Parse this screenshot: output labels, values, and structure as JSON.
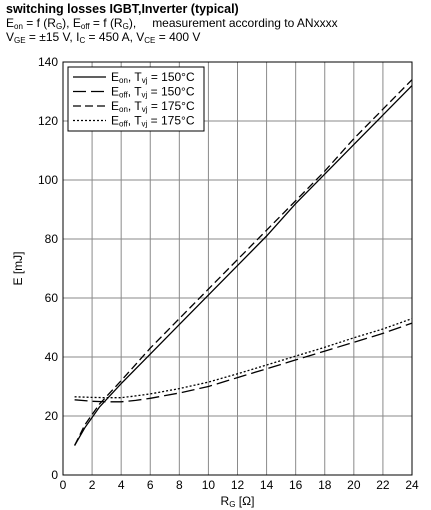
{
  "header": {
    "title": "switching losses IGBT,Inverter (typical)",
    "eon_eq_main": "E",
    "eon_eq_sub": "on",
    "eon_eq_rest": " = f (R",
    "eon_eq_sub2": "G",
    "eon_eq_end": "), E",
    "eoff_sub": "off",
    "eoff_rest": " = f (R",
    "eoff_sub2": "G",
    "eoff_end": "),",
    "measurement": "measurement according to ANxxxx",
    "cond_v": "V",
    "cond_v_sub": "GE",
    "cond_v_val": " = ±15 V, I",
    "cond_i_sub": "C",
    "cond_i_val": " = 450 A, V",
    "cond_vce_sub": "CE",
    "cond_vce_val": " = 400 V"
  },
  "chart_data": {
    "type": "line",
    "xlabel": "RG [Ω]",
    "ylabel": "E [mJ]",
    "xlim": [
      0,
      24
    ],
    "ylim": [
      0,
      140
    ],
    "xticks": [
      0,
      2,
      4,
      6,
      8,
      10,
      12,
      14,
      16,
      18,
      20,
      22,
      24
    ],
    "yticks": [
      0,
      20,
      40,
      60,
      80,
      100,
      120,
      140
    ],
    "grid": true,
    "legend_position": "top-left",
    "series": [
      {
        "name": "Eon, Tvj = 150°C",
        "label_main": "E",
        "label_sub": "on",
        "label_mid": ", T",
        "label_sub2": "vj",
        "label_end": " = 150°C",
        "dash": "solid",
        "x": [
          0.8,
          1.5,
          2.5,
          4,
          6,
          8,
          10,
          12,
          14,
          16,
          18,
          20,
          22,
          24
        ],
        "y": [
          10,
          16,
          23,
          31,
          41,
          51,
          61,
          71,
          81,
          92,
          102,
          112,
          122,
          132
        ]
      },
      {
        "name": "Eoff, Tvj = 150°C",
        "label_main": "E",
        "label_sub": "off",
        "label_mid": ", T",
        "label_sub2": "vj",
        "label_end": " = 150°C",
        "dash": "long",
        "x": [
          0.8,
          2,
          3,
          4,
          5,
          6,
          8,
          10,
          12,
          14,
          16,
          18,
          20,
          22,
          24
        ],
        "y": [
          25.5,
          25,
          24.8,
          24.8,
          25.3,
          26,
          27.8,
          30,
          33,
          36,
          39,
          42,
          45,
          48,
          51.5
        ]
      },
      {
        "name": "Eon, Tvj = 175°C",
        "label_main": "E",
        "label_sub": "on",
        "label_mid": ", T",
        "label_sub2": "vj",
        "label_end": " = 175°C",
        "dash": "medium",
        "x": [
          0.8,
          1.5,
          2.5,
          4,
          6,
          8,
          10,
          12,
          14,
          16,
          18,
          20,
          22,
          24
        ],
        "y": [
          10,
          17,
          24,
          32,
          43,
          53,
          63,
          73,
          83,
          93,
          103,
          114,
          124,
          134
        ]
      },
      {
        "name": "Eoff, Tvj = 175°C",
        "label_main": "E",
        "label_sub": "off",
        "label_mid": ", T",
        "label_sub2": "vj",
        "label_end": " = 175°C",
        "dash": "dotted",
        "x": [
          0.8,
          2,
          3,
          4,
          5,
          6,
          8,
          10,
          12,
          14,
          16,
          18,
          20,
          22,
          24
        ],
        "y": [
          26.5,
          26.3,
          26.2,
          26.2,
          26.8,
          27.5,
          29.3,
          31.5,
          34.3,
          37.3,
          40.3,
          43.3,
          46.5,
          49.5,
          53
        ]
      }
    ]
  }
}
